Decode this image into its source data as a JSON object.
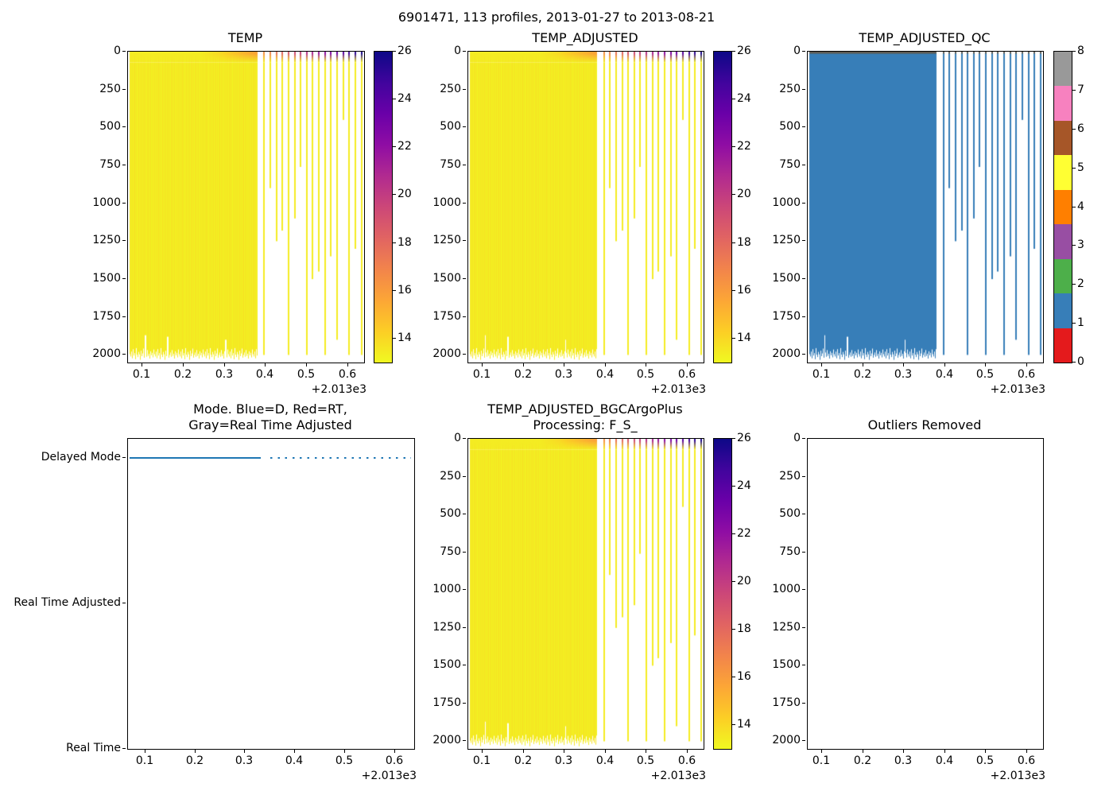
{
  "chart_data": {
    "type": "heatmap",
    "figure_title": "6901471, 113 profiles, 2013-01-27 to 2013-08-21",
    "x_axis": {
      "xlim": [
        0.065,
        0.639
      ],
      "ticks": [
        0.1,
        0.2,
        0.3,
        0.4,
        0.5,
        0.6
      ],
      "offset_label": "+2.013e3"
    },
    "depth_axis": {
      "ylim": [
        0,
        2050
      ],
      "ticks": [
        0,
        250,
        500,
        750,
        1000,
        1250,
        1500,
        1750,
        2000
      ]
    },
    "panels": [
      {
        "id": "temp",
        "title": "TEMP",
        "kind": "temp-heatmap"
      },
      {
        "id": "temp_adjusted",
        "title": "TEMP_ADJUSTED",
        "kind": "temp-heatmap"
      },
      {
        "id": "temp_adjusted_qc",
        "title": "TEMP_ADJUSTED_QC",
        "kind": "qc-heatmap"
      },
      {
        "id": "mode",
        "title_line1": "Mode. Blue=D, Red=RT,",
        "title_line2": "Gray=Real Time Adjusted",
        "kind": "line"
      },
      {
        "id": "temp_adjusted_bgc",
        "title_line1": "TEMP_ADJUSTED_BGCArgoPlus",
        "title_line2": "Processing: F_S_",
        "kind": "temp-heatmap"
      },
      {
        "id": "outliers",
        "title": "Outliers Removed",
        "kind": "empty"
      }
    ],
    "temp_colorbar": {
      "vmin": 13,
      "vmax": 26,
      "ticks": [
        14,
        16,
        18,
        20,
        22,
        24,
        26
      ],
      "colormap_stops_top_to_bottom": [
        "#0d0887",
        "#41049d",
        "#6a00a8",
        "#8f0da4",
        "#b12a90",
        "#cc4778",
        "#e16462",
        "#f2844b",
        "#fca636",
        "#fcce25",
        "#f0f921"
      ]
    },
    "qc_colorbar": {
      "ticks_top_to_bottom": [
        8,
        7,
        6,
        5,
        4,
        3,
        2,
        1,
        0
      ],
      "colors_top_to_bottom": [
        "#999999",
        "#f781bf",
        "#a65628",
        "#ffff33",
        "#ff7f00",
        "#984ea3",
        "#4daf4a",
        "#377eb8",
        "#e41a1c"
      ]
    },
    "profiles": {
      "dense_block": {
        "x_start": 0.068,
        "x_end": 0.378,
        "deep_value": 13.4,
        "bottom_depths": [
          1995,
          2010,
          1978,
          2022,
          1962,
          2004,
          1988,
          2028,
          1955,
          1998,
          2014,
          1980,
          1996,
          2032,
          1972,
          2008,
          1990,
          1958,
          2018,
          2000,
          1984,
          2012,
          1968,
          2006,
          1992,
          2024,
          1976,
          2002,
          1986,
          2016,
          1964
        ],
        "value_jitter": [
          0,
          0.18,
          -0.15,
          0.3,
          -0.22,
          0.12,
          0.26,
          -0.1,
          0.2,
          -0.28,
          0.06,
          0.24,
          -0.18,
          0.14,
          -0.06,
          0.3,
          -0.2,
          0.08,
          0.22,
          -0.12,
          0.16,
          -0.26,
          0.1,
          0.28,
          -0.16,
          0.04,
          0.2,
          -0.24,
          0.12,
          -0.08
        ],
        "notches": [
          {
            "x": 0.105,
            "bottom": 1870
          },
          {
            "x": 0.16,
            "bottom": 1880
          },
          {
            "x": 0.302,
            "bottom": 1900
          }
        ]
      },
      "sparse": [
        [
          0.394,
          2000
        ],
        [
          0.4088,
          900
        ],
        [
          0.4236,
          1250
        ],
        [
          0.4384,
          1180
        ],
        [
          0.4532,
          2000
        ],
        [
          0.468,
          1100
        ],
        [
          0.4828,
          760
        ],
        [
          0.4976,
          2000
        ],
        [
          0.5124,
          1500
        ],
        [
          0.5272,
          1450
        ],
        [
          0.542,
          2000
        ],
        [
          0.5568,
          1350
        ],
        [
          0.5716,
          1900
        ],
        [
          0.5864,
          450
        ],
        [
          0.6012,
          2000
        ],
        [
          0.616,
          1300
        ],
        [
          0.6308,
          2000
        ]
      ],
      "surface_temp_points": [
        [
          0.065,
          13.4
        ],
        [
          0.24,
          13.4
        ],
        [
          0.29,
          14.0
        ],
        [
          0.33,
          14.8
        ],
        [
          0.378,
          15.8
        ],
        [
          0.41,
          17.0
        ],
        [
          0.45,
          18.6
        ],
        [
          0.49,
          20.2
        ],
        [
          0.53,
          21.8
        ],
        [
          0.57,
          23.2
        ],
        [
          0.6,
          24.6
        ],
        [
          0.638,
          26.0
        ]
      ],
      "mixed_layer_depth": 12,
      "thermocline_depth": 70
    },
    "qc_style": {
      "fill_color": "#377eb8",
      "surface_line_color": "#5f5b52"
    },
    "mode_panel": {
      "levels": [
        "Delayed Mode",
        "Real Time Adjusted",
        "Real Time"
      ],
      "level_values": [
        2,
        1,
        0
      ],
      "ylim": [
        0,
        2.13
      ],
      "line_color": "#1f77b4",
      "solid_segment": {
        "x_start": 0.068,
        "x_end": 0.332,
        "level": "Delayed Mode"
      },
      "dotted_segment": {
        "x_start": 0.35,
        "x_end": 0.632,
        "level": "Delayed Mode"
      }
    }
  }
}
